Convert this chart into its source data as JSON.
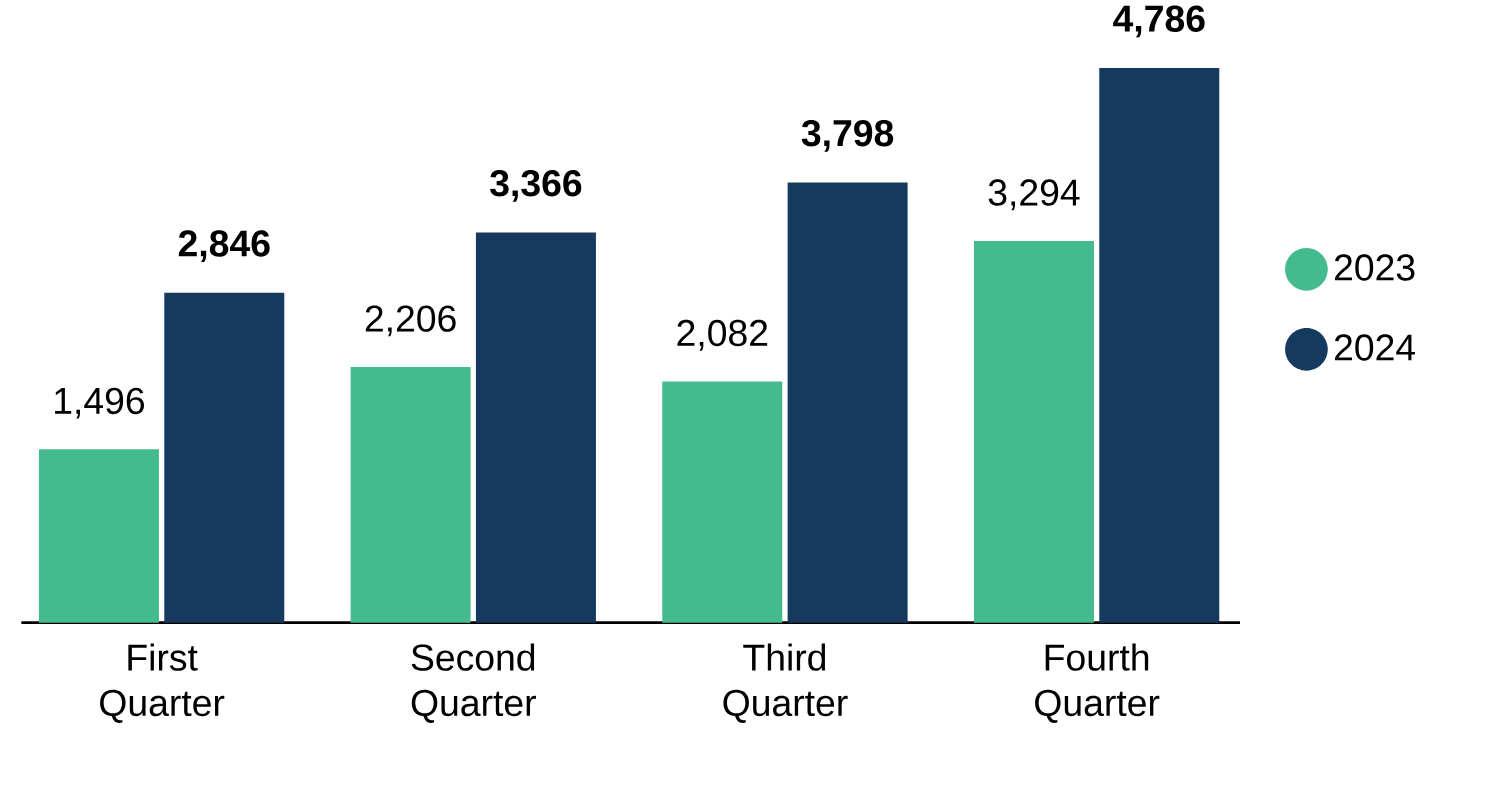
{
  "chart_data": {
    "type": "bar",
    "categories": [
      "First Quarter",
      "Second Quarter",
      "Third Quarter",
      "Fourth Quarter"
    ],
    "series": [
      {
        "name": "2023",
        "color": "#44bb8f",
        "values": [
          1496,
          2206,
          2082,
          3294
        ],
        "value_labels": [
          "1,496",
          "2,206",
          "2,082",
          "3,294"
        ]
      },
      {
        "name": "2024",
        "color": "#163a5f",
        "values": [
          2846,
          3366,
          3798,
          4786
        ],
        "value_labels": [
          "2,846",
          "3,366",
          "3,798",
          "4,786"
        ]
      }
    ],
    "legend": "right",
    "grid": false
  }
}
